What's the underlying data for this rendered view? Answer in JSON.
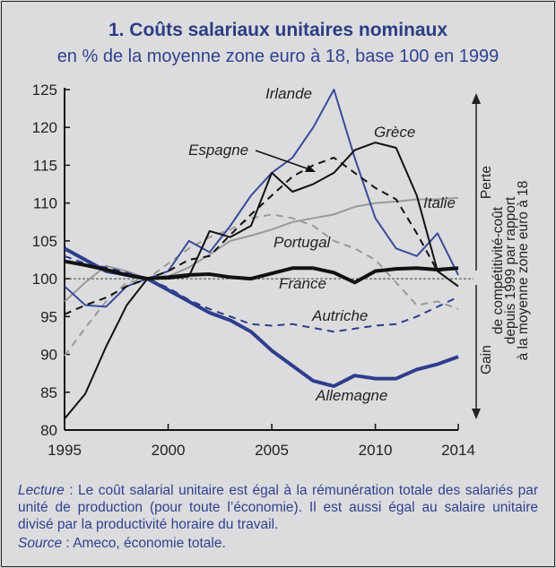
{
  "chart_data": {
    "type": "line",
    "title": "1. Coûts salariaux unitaires nominaux",
    "subtitle": "en % de la moyenne zone euro à 18, base 100 en 1999",
    "xlabel": "",
    "ylabel": "",
    "xlim": [
      1995,
      2014
    ],
    "ylim": [
      80,
      125
    ],
    "x_ticks": [
      "1995",
      "2000",
      "2005",
      "2010",
      "2014"
    ],
    "y_ticks": [
      "80",
      "85",
      "90",
      "95",
      "100",
      "105",
      "110",
      "115",
      "120",
      "125"
    ],
    "reference_line": 100,
    "grid": false,
    "x": [
      1995,
      1996,
      1997,
      1998,
      1999,
      2000,
      2001,
      2002,
      2003,
      2004,
      2005,
      2006,
      2007,
      2008,
      2009,
      2010,
      2011,
      2012,
      2013,
      2014
    ],
    "series": [
      {
        "name": "Italie",
        "color": "#9a9a9a",
        "style": "solid",
        "values": [
          97,
          99.5,
          101.7,
          101,
          100,
          100.3,
          101.5,
          103.2,
          105,
          105.7,
          106.5,
          107.5,
          108,
          108.5,
          109.5,
          110,
          110.2,
          110.5,
          110.5,
          110.7
        ]
      },
      {
        "name": "Portugal",
        "color": "#9a9a9a",
        "style": "dashed",
        "values": [
          89.8,
          93.5,
          97,
          99.5,
          100,
          102,
          104,
          105.5,
          106.5,
          108,
          108.5,
          108,
          107,
          105,
          104,
          102.5,
          99.5,
          96.5,
          97,
          96
        ]
      },
      {
        "name": "Autriche",
        "color": "#2e3d8c",
        "style": "dashed",
        "values": [
          103,
          102,
          101.5,
          100.8,
          100,
          98.8,
          97.2,
          96,
          95,
          94,
          93.8,
          94,
          93.5,
          93,
          93.4,
          93.8,
          94,
          95,
          96.3,
          97.6
        ]
      },
      {
        "name": "Irlande",
        "color": "#3a4a9a",
        "style": "solid",
        "values": [
          99,
          96.5,
          96.3,
          99,
          100,
          101,
          105,
          103.5,
          107,
          111,
          114,
          116,
          120,
          125,
          116,
          108,
          104,
          103,
          106,
          100.5
        ]
      },
      {
        "name": "Allemagne",
        "color": "#2e3d8c",
        "style": "thick",
        "values": [
          104,
          102.5,
          101,
          100.5,
          100,
          98.5,
          97,
          95.5,
          94.5,
          93,
          90.5,
          88.5,
          86.5,
          85.8,
          87.2,
          86.8,
          86.8,
          88,
          88.7,
          89.7
        ]
      },
      {
        "name": "Espagne",
        "color": "#111111",
        "style": "dashed",
        "values": [
          95.3,
          96.5,
          97.5,
          99,
          100,
          101,
          102.5,
          103,
          105.8,
          108.5,
          111,
          113.5,
          115,
          116,
          114,
          112,
          110.5,
          106,
          101,
          101.5
        ]
      },
      {
        "name": "Grèce",
        "color": "#111111",
        "style": "solid",
        "values": [
          81.5,
          84.8,
          91,
          96.5,
          100,
          100,
          100.3,
          106.3,
          105.5,
          107,
          114,
          111.5,
          112.5,
          114,
          117,
          118,
          117.3,
          111,
          101,
          99
        ]
      },
      {
        "name": "France",
        "color": "#111111",
        "style": "thick",
        "values": [
          102.3,
          101.8,
          101.2,
          100.5,
          100,
          100.2,
          100.5,
          100.6,
          100.2,
          100,
          100.7,
          101.4,
          101.4,
          100.8,
          99.5,
          101,
          101.3,
          101.4,
          101.2,
          101.4
        ]
      }
    ],
    "series_labels": [
      "Irlande",
      "Grèce",
      "Espagne",
      "Italie",
      "Portugal",
      "France",
      "Autriche",
      "Allemagne"
    ],
    "annotation": {
      "top": "Perte",
      "bottom": "Gain",
      "lines": [
        "de compétitivité-coût",
        "depuis 1999 par rapport",
        "à la moyenne zone euro à 18"
      ]
    }
  },
  "footer": {
    "lecture_label": "Lecture",
    "lecture_text": " : Le coût salarial unitaire est égal à la rémunération totale des salariés par unité de production (pour toute l’économie). Il est aussi égal au salaire unitaire divisé par la productivité horaire du travail.",
    "source_label": "Source",
    "source_text": " : Ameco, économie totale."
  }
}
